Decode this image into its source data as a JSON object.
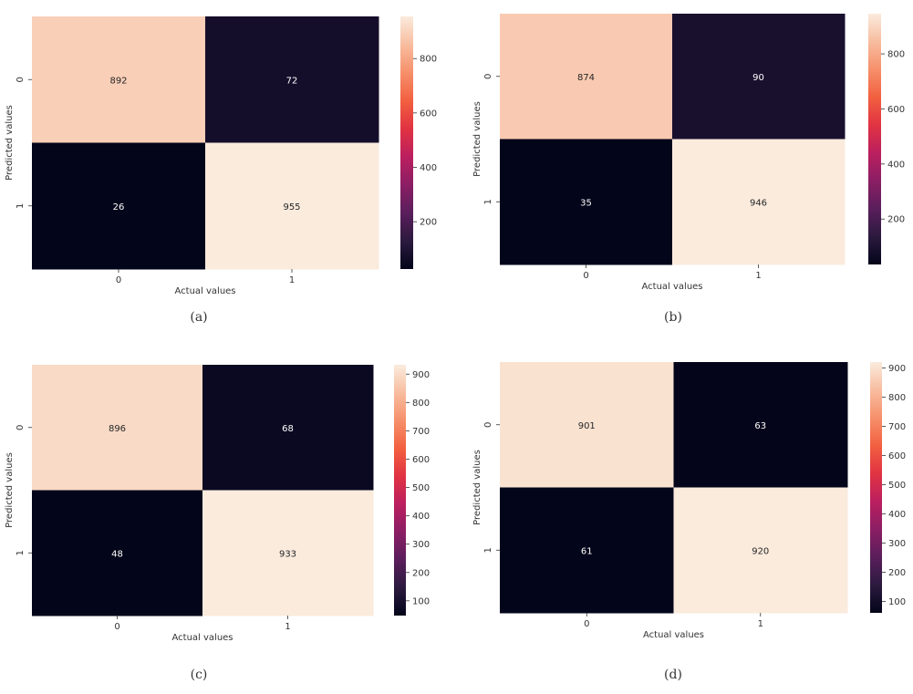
{
  "chart_data": [
    {
      "type": "heatmap",
      "caption": "(a)",
      "xlabel": "Actual values",
      "ylabel": "Predicted values",
      "x_tick_labels": [
        "0",
        "1"
      ],
      "y_tick_labels": [
        "0",
        "1"
      ],
      "matrix": [
        [
          892,
          72
        ],
        [
          26,
          955
        ]
      ],
      "colorbar": {
        "vmin": 26,
        "vmax": 955,
        "ticks": [
          200,
          400,
          600,
          800
        ]
      }
    },
    {
      "type": "heatmap",
      "caption": "(b)",
      "xlabel": "Actual values",
      "ylabel": "Predicted values",
      "x_tick_labels": [
        "0",
        "1"
      ],
      "y_tick_labels": [
        "0",
        "1"
      ],
      "matrix": [
        [
          874,
          90
        ],
        [
          35,
          946
        ]
      ],
      "colorbar": {
        "vmin": 35,
        "vmax": 946,
        "ticks": [
          200,
          400,
          600,
          800
        ]
      }
    },
    {
      "type": "heatmap",
      "caption": "(c)",
      "xlabel": "Actual values",
      "ylabel": "Predicted values",
      "x_tick_labels": [
        "0",
        "1"
      ],
      "y_tick_labels": [
        "0",
        "1"
      ],
      "matrix": [
        [
          896,
          68
        ],
        [
          48,
          933
        ]
      ],
      "colorbar": {
        "vmin": 48,
        "vmax": 933,
        "ticks": [
          100,
          200,
          300,
          400,
          500,
          600,
          700,
          800,
          900
        ]
      }
    },
    {
      "type": "heatmap",
      "caption": "(d)",
      "xlabel": "Actual values",
      "ylabel": "Predicted values",
      "x_tick_labels": [
        "0",
        "1"
      ],
      "y_tick_labels": [
        "0",
        "1"
      ],
      "matrix": [
        [
          901,
          63
        ],
        [
          61,
          920
        ]
      ],
      "colorbar": {
        "vmin": 61,
        "vmax": 920,
        "ticks": [
          100,
          200,
          300,
          400,
          500,
          600,
          700,
          800,
          900
        ]
      }
    }
  ],
  "colormap": [
    "#03051a",
    "#2b1a3e",
    "#5a1e5c",
    "#8b1e64",
    "#bb1f5f",
    "#e13342",
    "#f26040",
    "#f6906b",
    "#f8bd9f",
    "#faebdd"
  ]
}
